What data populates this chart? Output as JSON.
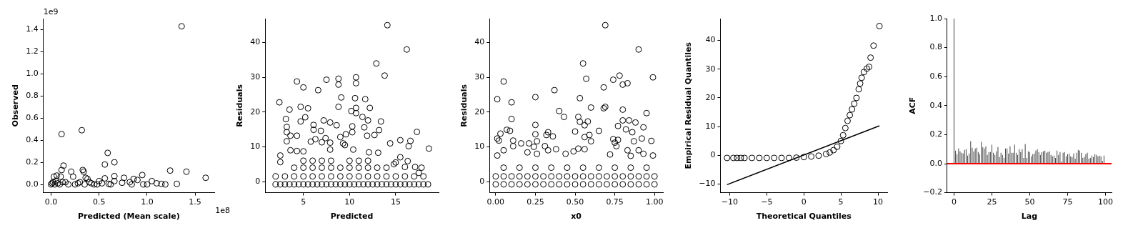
{
  "chart_data": [
    {
      "type": "scatter",
      "xlabel": "Predicted (Mean scale)",
      "ylabel": "Observed",
      "marker": "circle",
      "annotations": [
        "1e9",
        "1e8"
      ],
      "xlim": [
        -0.08,
        1.7
      ],
      "ylim": [
        -0.075,
        1.5
      ],
      "xticks": [
        {
          "value": 0,
          "label": "0.0"
        },
        {
          "value": 0.5,
          "label": "0.5"
        },
        {
          "value": 1,
          "label": "1.0"
        },
        {
          "value": 1.5,
          "label": "1.5"
        }
      ],
      "yticks": [
        {
          "value": 0,
          "label": "0.0"
        },
        {
          "value": 0.2,
          "label": "0.2"
        },
        {
          "value": 0.4,
          "label": "0.4"
        },
        {
          "value": 0.6,
          "label": "0.6"
        },
        {
          "value": 0.8,
          "label": "0.8"
        },
        {
          "value": 1,
          "label": "1.0"
        },
        {
          "value": 1.2,
          "label": "1.2"
        },
        {
          "value": 1.4,
          "label": "1.4"
        }
      ],
      "series": [
        {
          "color": "#000000",
          "x": [
            1.36,
            0.32,
            0.11,
            0.59,
            0.66,
            0.56,
            0.13,
            0.11,
            0.33,
            0.34,
            0.21,
            1.24,
            1.41,
            1.61,
            0.95,
            0.66,
            0.76,
            0.86,
            0.9,
            0.23,
            0.06,
            0.03,
            0.1,
            0.38,
            0.36,
            0.56,
            1.05,
            1.1,
            1.15,
            1.19,
            1.31,
            1.0,
            0.96,
            0.84,
            0.82,
            0.74,
            0.5,
            0.66,
            0.6,
            0.45,
            0.4,
            0.28,
            0.15,
            0.0,
            0.01,
            0.02,
            0.04,
            0.05,
            0.07,
            0.09,
            0.12,
            0.18,
            0.25,
            0.3,
            0.35,
            0.42,
            0.48,
            0.53,
            0.62
          ],
          "values": [
            1.43,
            0.49,
            0.455,
            0.285,
            0.2,
            0.18,
            0.17,
            0.13,
            0.13,
            0.115,
            0.115,
            0.125,
            0.115,
            0.06,
            0.085,
            0.075,
            0.06,
            0.05,
            0.04,
            0.07,
            0.08,
            0.07,
            0.07,
            0.05,
            0.06,
            0.055,
            0.03,
            0.01,
            0.005,
            0.0,
            0.005,
            0.0,
            0.0,
            0.0,
            0.02,
            0.015,
            0.03,
            0.03,
            0.005,
            0.0,
            0.02,
            0.01,
            0.02,
            0.0,
            0.01,
            0.02,
            0.0,
            0.03,
            0.01,
            0.0,
            0.02,
            0.0,
            0.0,
            0.02,
            0.0,
            0.01,
            0.0,
            0.01,
            0.0
          ]
        }
      ]
    },
    {
      "type": "scatter",
      "xlabel": "Predicted",
      "ylabel": "Residuals",
      "marker": "circle",
      "xlim": [
        0.86,
        19.65
      ],
      "ylim": [
        -3.2,
        46.9
      ],
      "xticks": [
        5,
        10,
        15
      ],
      "yticks": [
        0,
        10,
        20,
        30,
        40
      ],
      "series": [
        {
          "color": "#000000",
          "x": [
            14.1,
            16.2,
            12.9,
            13.8,
            8.8,
            10.7,
            4.3,
            7.5,
            5.0,
            6.6,
            8.8,
            10.7,
            9.1,
            10.6,
            11.7,
            2.4,
            3.5,
            4.7,
            5.5,
            8.8,
            10.2,
            10.7,
            10.7,
            12.2,
            11.4,
            5.2,
            3.1,
            4.7,
            7.2,
            7.9,
            12.0,
            13.4,
            8.6,
            6.1,
            3.2,
            10.3,
            11.6,
            6.1,
            6.9,
            3.2,
            10.3,
            13.2,
            17.3,
            3.6,
            4.3,
            9.6,
            9.0,
            11.9,
            12.7,
            6.3,
            7.4,
            3.2,
            5.8,
            7.0,
            9.3,
            9.5,
            14.4,
            15.5,
            16.6,
            16.4,
            7.9,
            3.6,
            4.3,
            5.0,
            7.9,
            10.4,
            12.1,
            13.1,
            18.6,
            2.5,
            2.5,
            15.5,
            16.3,
            17.1,
            17.8,
            15.0,
            14.8,
            16.0,
            17.5
          ],
          "values": [
            45,
            38,
            34,
            30.5,
            29.6,
            30,
            28.8,
            29.3,
            27.1,
            26.3,
            27.9,
            28.3,
            24.2,
            24,
            23.7,
            22.8,
            20.7,
            21.5,
            21.1,
            21.5,
            20.3,
            21.2,
            19.7,
            21.2,
            18.6,
            18.5,
            18,
            17.3,
            17.6,
            17,
            17.6,
            17.3,
            16.2,
            16.3,
            15.7,
            15.9,
            15.6,
            14.9,
            14.6,
            14.2,
            14.2,
            14.8,
            14.3,
            13.2,
            13.2,
            13.6,
            12.8,
            13.2,
            13.4,
            12.2,
            12.5,
            11.6,
            11.5,
            11.3,
            11,
            10.5,
            11,
            11.9,
            11.7,
            10.2,
            11.2,
            9,
            8.8,
            8.7,
            9.2,
            9.2,
            8.4,
            8.3,
            9.5,
            7.5,
            5.6,
            7,
            5.9,
            4.2,
            4,
            5.5,
            5,
            4.2,
            2.5
          ]
        },
        {
          "color": "#000000",
          "x": [
            2,
            2.5,
            3,
            3.5,
            4,
            4.5,
            5,
            5.5,
            6,
            6.5,
            7,
            7.5,
            8,
            8.5,
            9,
            9.5,
            10,
            10.5,
            11,
            11.5,
            12,
            12.5,
            13,
            13.5,
            14,
            14.5,
            15,
            15.5,
            16,
            16.5,
            17,
            17.5,
            18,
            18.5,
            2,
            3,
            4,
            5,
            6,
            7,
            8,
            9,
            10,
            11,
            12,
            13,
            14,
            15,
            16,
            17,
            18,
            4,
            5,
            6,
            7,
            8,
            9,
            10,
            11,
            12,
            13,
            14,
            5,
            6,
            7,
            8,
            10,
            11,
            12
          ],
          "values": [
            -0.8,
            -0.8,
            -0.8,
            -0.8,
            -0.8,
            -0.8,
            -0.8,
            -0.8,
            -0.8,
            -0.8,
            -0.8,
            -0.8,
            -0.8,
            -0.8,
            -0.8,
            -0.8,
            -0.8,
            -0.8,
            -0.8,
            -0.8,
            -0.8,
            -0.8,
            -0.8,
            -0.8,
            -0.8,
            -0.8,
            -0.8,
            -0.8,
            -0.8,
            -0.8,
            -0.8,
            -0.8,
            -0.8,
            -0.8,
            1.5,
            1.5,
            1.5,
            1.5,
            1.5,
            1.5,
            1.5,
            1.5,
            1.5,
            1.5,
            1.5,
            1.5,
            1.5,
            1.5,
            1.5,
            1.5,
            1.5,
            4,
            4,
            4,
            4,
            4,
            4,
            4,
            4,
            4,
            4,
            4,
            6,
            6,
            6,
            6,
            6,
            6,
            6
          ]
        }
      ]
    },
    {
      "type": "scatter",
      "xlabel": "x0",
      "ylabel": "Residuals",
      "marker": "circle",
      "xlim": [
        -0.039,
        1.053
      ],
      "ylim": [
        -3.2,
        46.9
      ],
      "xticks": [
        {
          "value": 0,
          "label": "0.00"
        },
        {
          "value": 0.25,
          "label": "0.25"
        },
        {
          "value": 0.5,
          "label": "0.50"
        },
        {
          "value": 0.75,
          "label": "0.75"
        },
        {
          "value": 1,
          "label": "1.00"
        }
      ],
      "yticks": [
        0,
        10,
        20,
        30,
        40
      ],
      "series": [
        {
          "color": "#000000",
          "x": [
            0.69,
            0.9,
            0.55,
            0.05,
            0.99,
            0.57,
            0.74,
            0.78,
            0.83,
            0.8,
            0.68,
            0.37,
            0.25,
            0.53,
            0.01,
            0.1,
            0.6,
            0.69,
            0.68,
            0.8,
            0.4,
            0.95,
            0.43,
            0.1,
            0.52,
            0.53,
            0.58,
            0.8,
            0.84,
            0.88,
            0.77,
            0.56,
            0.25,
            0.82,
            0.93,
            0.07,
            0.09,
            0.5,
            0.33,
            0.65,
            0.86,
            0.03,
            0.25,
            0.32,
            0.36,
            0.56,
            0.59,
            0.74,
            0.92,
            0.01,
            0.02,
            0.11,
            0.26,
            0.6,
            0.75,
            0.77,
            0.87,
            0.98,
            0.16,
            0.21,
            0.31,
            0.11,
            0.24,
            0.76,
            0.05,
            0.33,
            0.38,
            0.49,
            0.52,
            0.56,
            0.83,
            0.9,
            0.2,
            0.01,
            0.26,
            0.44,
            0.72,
            0.85,
            0.99,
            0.93
          ],
          "values": [
            45,
            38,
            34,
            28.8,
            30,
            29.6,
            29.3,
            30.5,
            28.3,
            27.9,
            27.1,
            26.3,
            24.3,
            24,
            23.7,
            22.8,
            21.3,
            21.5,
            21.1,
            20.7,
            20.3,
            19.7,
            18.6,
            18,
            18.6,
            17.2,
            17.3,
            17.6,
            17.6,
            17,
            16,
            16.2,
            16.3,
            15,
            15.6,
            14.9,
            14.6,
            14.4,
            14.2,
            14.6,
            14.2,
            13.8,
            13.6,
            13.4,
            13,
            12.8,
            13.4,
            12.2,
            12.4,
            12.4,
            11.8,
            11.8,
            11.6,
            11.6,
            11.2,
            12,
            11.6,
            11.7,
            11,
            11,
            10.2,
            10.2,
            10,
            10.2,
            9,
            9,
            9.3,
            8.7,
            9.5,
            9.3,
            9,
            9,
            8.4,
            7.5,
            8,
            8,
            7.8,
            7.4,
            7.5,
            8
          ]
        },
        {
          "color": "#000000",
          "x": [
            0,
            0.05,
            0.1,
            0.15,
            0.2,
            0.25,
            0.3,
            0.35,
            0.4,
            0.45,
            0.5,
            0.55,
            0.6,
            0.65,
            0.7,
            0.75,
            0.8,
            0.85,
            0.9,
            0.95,
            1,
            0,
            0.05,
            0.1,
            0.15,
            0.2,
            0.25,
            0.3,
            0.35,
            0.4,
            0.45,
            0.5,
            0.55,
            0.6,
            0.65,
            0.7,
            0.75,
            0.8,
            0.85,
            0.9,
            0.95,
            1,
            0.05,
            0.15,
            0.25,
            0.35,
            0.45,
            0.55,
            0.65,
            0.75,
            0.85,
            0.95
          ],
          "values": [
            -0.8,
            -0.8,
            -0.8,
            -0.8,
            -0.8,
            -0.8,
            -0.8,
            -0.8,
            -0.8,
            -0.8,
            -0.8,
            -0.8,
            -0.8,
            -0.8,
            -0.8,
            -0.8,
            -0.8,
            -0.8,
            -0.8,
            -0.8,
            -0.8,
            1.5,
            1.5,
            1.5,
            1.5,
            1.5,
            1.5,
            1.5,
            1.5,
            1.5,
            1.5,
            1.5,
            1.5,
            1.5,
            1.5,
            1.5,
            1.5,
            1.5,
            1.5,
            1.5,
            1.5,
            1.5,
            4,
            4,
            4,
            4,
            4,
            4,
            4,
            4,
            4,
            4
          ]
        }
      ]
    },
    {
      "type": "scatter",
      "xlabel": "Theoretical Quantiles",
      "ylabel": "Empirical Residual Quantiles",
      "xlim": [
        -11.25,
        11.25
      ],
      "ylim": [
        -13,
        47.6
      ],
      "xticks": [
        {
          "value": -10,
          "label": "−10"
        },
        {
          "value": -5,
          "label": "−5"
        },
        0,
        5,
        10
      ],
      "yticks": [
        {
          "value": -10,
          "label": "−10"
        },
        0,
        10,
        20,
        30,
        40
      ],
      "series": [
        {
          "color": "#000000",
          "marker": "circle",
          "x": [
            -10.35,
            -9.5,
            -9,
            -8.5,
            -8,
            -7,
            -6,
            -5,
            -4,
            -3,
            -2,
            -1,
            0,
            1,
            2,
            3,
            3.5,
            4,
            4.5,
            5,
            5.3,
            5.6,
            5.9,
            6.2,
            6.5,
            6.8,
            7.1,
            7.4,
            7.6,
            7.8,
            8.1,
            8.5,
            8.8,
            9.0,
            9.4,
            10.2
          ],
          "values": [
            -0.9,
            -0.9,
            -0.9,
            -0.9,
            -0.9,
            -0.9,
            -0.9,
            -0.9,
            -0.9,
            -0.9,
            -0.9,
            -0.8,
            -0.6,
            -0.4,
            -0.1,
            0.5,
            1,
            1.8,
            3,
            5,
            7,
            9.5,
            12,
            14,
            16,
            18,
            20,
            23,
            25,
            27,
            29,
            30.2,
            30.8,
            34,
            38.2,
            45
          ]
        },
        {
          "type": "line",
          "color": "#000000",
          "x": [
            -10.35,
            10.2
          ],
          "values": [
            -10.2,
            10.3
          ]
        }
      ]
    },
    {
      "type": "bar",
      "xlabel": "Lag",
      "ylabel": "ACF",
      "xlim": [
        -4.5,
        104
      ],
      "ylim": [
        -0.2,
        1.0
      ],
      "xticks": [
        0,
        25,
        50,
        75,
        100
      ],
      "yticks": [
        {
          "value": -0.2,
          "label": "−0.2"
        },
        {
          "value": 0,
          "label": "0.0"
        },
        {
          "value": 0.2,
          "label": "0.2"
        },
        {
          "value": 0.4,
          "label": "0.4"
        },
        {
          "value": 0.6,
          "label": "0.6"
        },
        {
          "value": 0.8,
          "label": "0.8"
        },
        {
          "value": 1,
          "label": "1.0"
        }
      ],
      "ref_lines": [
        {
          "axis": "y",
          "value": 0,
          "color": "#ff0000"
        }
      ],
      "series": [
        {
          "color": "#444444",
          "x": [
            0,
            1,
            2,
            3,
            4,
            5,
            6,
            7,
            8,
            9,
            10,
            11,
            12,
            13,
            14,
            15,
            16,
            17,
            18,
            19,
            20,
            21,
            22,
            23,
            24,
            25,
            26,
            27,
            28,
            29,
            30,
            31,
            32,
            33,
            34,
            35,
            36,
            37,
            38,
            39,
            40,
            41,
            42,
            43,
            44,
            45,
            46,
            47,
            48,
            49,
            50,
            51,
            52,
            53,
            54,
            55,
            56,
            57,
            58,
            59,
            60,
            61,
            62,
            63,
            64,
            65,
            66,
            67,
            68,
            69,
            70,
            71,
            72,
            73,
            74,
            75,
            76,
            77,
            78,
            79,
            80,
            81,
            82,
            83,
            84,
            85,
            86,
            87,
            88,
            89,
            90,
            91,
            92,
            93,
            94,
            95,
            96,
            97,
            98,
            99
          ],
          "values": [
            1.0,
            0.09,
            0.065,
            0.105,
            0.085,
            0.075,
            0.07,
            0.095,
            0.1,
            0.055,
            0.07,
            0.155,
            0.11,
            0.085,
            0.105,
            0.11,
            0.08,
            0.065,
            0.15,
            0.115,
            0.105,
            0.12,
            0.06,
            0.08,
            0.08,
            0.13,
            0.075,
            0.06,
            0.085,
            0.115,
            0.045,
            0.075,
            0.06,
            0.04,
            0.105,
            0.105,
            0.07,
            0.12,
            0.075,
            0.075,
            0.13,
            0.075,
            0.06,
            0.1,
            0.08,
            0.1,
            0.04,
            0.135,
            0.04,
            0.085,
            0.08,
            0.05,
            0.065,
            0.07,
            0.09,
            0.1,
            0.08,
            0.06,
            0.08,
            0.085,
            0.09,
            0.075,
            0.08,
            0.085,
            0.06,
            0.05,
            0.055,
            0.04,
            0.09,
            0.06,
            0.08,
            0.015,
            0.075,
            0.08,
            0.05,
            0.065,
            0.07,
            0.05,
            0.045,
            0.07,
            0.035,
            0.075,
            0.095,
            0.09,
            0.075,
            0.04,
            0.045,
            0.065,
            0.075,
            0.035,
            0.04,
            0.055,
            0.045,
            0.065,
            0.06,
            0.05,
            0.055,
            0.05,
            0.02,
            0.055
          ]
        }
      ]
    }
  ]
}
